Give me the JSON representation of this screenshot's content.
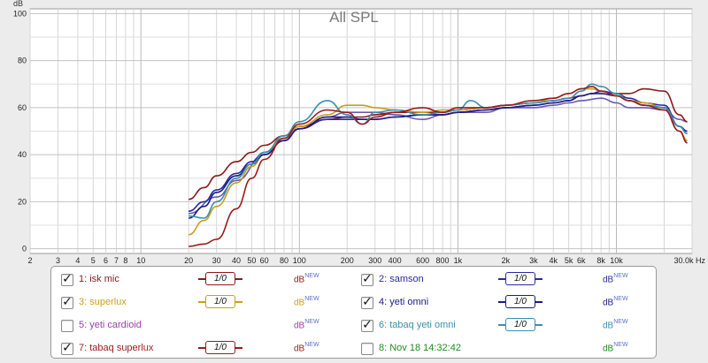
{
  "chart_data": {
    "type": "line",
    "title": "All SPL",
    "y_unit": "dB",
    "x_unit": "Hz",
    "xscale": "log",
    "xlim": [
      2,
      30000
    ],
    "ylim": [
      -2,
      102
    ],
    "grid": true,
    "y_ticks": [
      0,
      20,
      40,
      60,
      80,
      100
    ],
    "y_tick_labels": [
      "0",
      "20",
      "40",
      "60",
      "80",
      "100"
    ],
    "x_ticks": [
      2,
      3,
      4,
      5,
      6,
      7,
      8,
      10,
      20,
      30,
      40,
      50,
      60,
      80,
      100,
      200,
      300,
      400,
      600,
      800,
      1000,
      2000,
      3000,
      4000,
      5000,
      6000,
      8000,
      10000,
      30000
    ],
    "x_tick_labels": [
      "2",
      "3",
      "4",
      "5",
      "6",
      "7",
      "8",
      "10",
      "20",
      "30",
      "40",
      "50",
      "60",
      "80",
      "100",
      "200",
      "300",
      "400",
      "600",
      "800",
      "1k",
      "2k",
      "3k",
      "4k",
      "5k",
      "6k",
      "8k",
      "10k",
      "30.0k Hz"
    ],
    "series": [
      {
        "name": "1: isk mic",
        "color": "#8b1a1a",
        "x": [
          20,
          25,
          30,
          40,
          50,
          60,
          80,
          100,
          150,
          200,
          250,
          300,
          400,
          600,
          800,
          1000,
          1500,
          2000,
          3000,
          4000,
          5000,
          6000,
          7000,
          8000,
          10000,
          12000,
          15000,
          20000,
          25000,
          28000
        ],
        "y": [
          21,
          26,
          31,
          37,
          41,
          44,
          48,
          52,
          55,
          56,
          56,
          57,
          58,
          58,
          58,
          59,
          60,
          61,
          62,
          63,
          64,
          65,
          66,
          67,
          66,
          66,
          68,
          67,
          57,
          54
        ]
      },
      {
        "name": "2: samson",
        "color": "#2a2aa0",
        "x": [
          20,
          25,
          30,
          40,
          50,
          60,
          80,
          100,
          150,
          200,
          250,
          300,
          400,
          600,
          800,
          1000,
          1500,
          2000,
          3000,
          4000,
          5000,
          6000,
          7000,
          8000,
          10000,
          12000,
          15000,
          20000,
          25000,
          28000
        ],
        "y": [
          16,
          20,
          25,
          32,
          37,
          41,
          47,
          51,
          55,
          55,
          55,
          55,
          56,
          57,
          57,
          58,
          59,
          60,
          61,
          62,
          63,
          65,
          66,
          67,
          66,
          64,
          62,
          61,
          52,
          49
        ]
      },
      {
        "name": "3: superlux",
        "color": "#c89f1e",
        "x": [
          20,
          25,
          30,
          40,
          50,
          60,
          80,
          100,
          150,
          200,
          250,
          300,
          400,
          600,
          800,
          1000,
          1500,
          2000,
          3000,
          4000,
          5000,
          6000,
          7000,
          8000,
          10000,
          12000,
          15000,
          20000,
          25000,
          28000
        ],
        "y": [
          6,
          12,
          18,
          28,
          35,
          40,
          47,
          52,
          57,
          61,
          61,
          60,
          59,
          58,
          59,
          59,
          60,
          61,
          62,
          64,
          66,
          68,
          68,
          67,
          65,
          63,
          62,
          60,
          50,
          46
        ]
      },
      {
        "name": "5: yeti cardioid",
        "color": "#9a3fa8",
        "x": [],
        "y": []
      },
      {
        "name": "4: yeti omni",
        "color": "#1a1a88",
        "x": [
          20,
          25,
          30,
          40,
          50,
          60,
          80,
          100,
          150,
          200,
          250,
          300,
          400,
          600,
          800,
          1000,
          1500,
          2000,
          3000,
          4000,
          5000,
          6000,
          7000,
          8000,
          10000,
          12000,
          15000,
          20000,
          25000,
          28000
        ],
        "y": [
          13,
          18,
          24,
          31,
          36,
          40,
          46,
          51,
          56,
          56,
          55,
          55,
          56,
          57,
          57,
          58,
          59,
          60,
          61,
          62,
          63,
          65,
          66,
          66,
          65,
          63,
          61,
          60,
          52,
          50
        ]
      },
      {
        "name": "6: tabaq yeti omni",
        "color": "#3a8fb0",
        "x": [
          20,
          25,
          30,
          40,
          50,
          60,
          80,
          100,
          150,
          200,
          250,
          300,
          400,
          600,
          800,
          1000,
          1200,
          1500,
          2000,
          3000,
          4000,
          5000,
          6000,
          7000,
          8000,
          10000,
          12000,
          15000,
          20000,
          25000,
          28000
        ],
        "y": [
          14,
          13,
          20,
          30,
          36,
          41,
          48,
          54,
          63,
          57,
          53,
          58,
          59,
          57,
          58,
          59,
          63,
          60,
          61,
          62,
          63,
          64,
          67,
          70,
          69,
          66,
          63,
          61,
          60,
          52,
          49
        ]
      },
      {
        "name": "7: tabaq superlux",
        "color": "#9a1a1a",
        "x": [
          20,
          25,
          30,
          40,
          50,
          60,
          80,
          100,
          150,
          200,
          250,
          300,
          400,
          600,
          800,
          1000,
          1500,
          2000,
          3000,
          4000,
          5000,
          6000,
          7000,
          8000,
          10000,
          12000,
          15000,
          20000,
          25000,
          28000
        ],
        "y": [
          1,
          2,
          4,
          17,
          30,
          38,
          47,
          53,
          59,
          58,
          53,
          56,
          58,
          60,
          58,
          60,
          60,
          61,
          63,
          64,
          66,
          68,
          69,
          67,
          65,
          63,
          61,
          59,
          50,
          45
        ]
      },
      {
        "name": "8: Nov 18 14:32:42",
        "color": "#1e8c1e",
        "x": [],
        "y": []
      }
    ],
    "extra_trace": {
      "color": "#6a5ab0",
      "x": [
        20,
        30,
        40,
        60,
        80,
        100,
        150,
        200,
        300,
        400,
        600,
        800,
        1000,
        1500,
        2000,
        3000,
        4000,
        5000,
        6000,
        8000,
        10000,
        12000,
        15000,
        20000,
        25000,
        28000
      ],
      "y": [
        15,
        22,
        29,
        40,
        46,
        51,
        56,
        58,
        58,
        57,
        55,
        57,
        58,
        58,
        60,
        60,
        61,
        62,
        63,
        64,
        62,
        60,
        60,
        59,
        55,
        54
      ]
    }
  },
  "legend": {
    "items": [
      {
        "label": "1: isk mic",
        "checked": true,
        "color": "#8b1a1a",
        "smoothing": "1/0",
        "db": "dB",
        "new": "NEW"
      },
      {
        "label": "2: samson",
        "checked": true,
        "color": "#2a2aa0",
        "smoothing": "1/0",
        "db": "dB",
        "new": "NEW"
      },
      {
        "label": "3: superlux",
        "checked": true,
        "color": "#c89f1e",
        "smoothing": "1/0",
        "db": "dB",
        "new": "NEW"
      },
      {
        "label": "4: yeti omni",
        "checked": true,
        "color": "#1a1a88",
        "smoothing": "1/0",
        "db": "dB",
        "new": "NEW"
      },
      {
        "label": "5: yeti cardioid",
        "checked": false,
        "color": "#9a3fa8",
        "smoothing": "",
        "db": "dB",
        "new": "NEW"
      },
      {
        "label": "6: tabaq yeti omni",
        "checked": true,
        "color": "#3a8fb0",
        "smoothing": "1/0",
        "db": "dB",
        "new": "NEW"
      },
      {
        "label": "7: tabaq superlux",
        "checked": true,
        "color": "#9a1a1a",
        "smoothing": "1/0",
        "db": "dB",
        "new": "NEW"
      },
      {
        "label": "8: Nov 18 14:32:42",
        "checked": false,
        "color": "#1e8c1e",
        "smoothing": "",
        "db": "dB",
        "new": "NEW"
      }
    ]
  }
}
